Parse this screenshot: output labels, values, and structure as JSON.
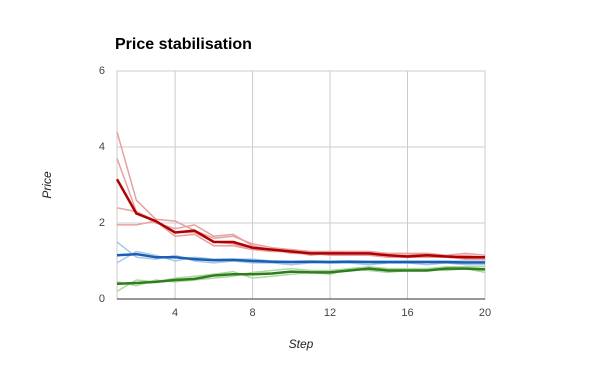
{
  "chart_data": {
    "type": "line",
    "title": "Price stabilisation",
    "x_label": "Step",
    "y_label": "Price",
    "x": [
      1,
      2,
      3,
      4,
      5,
      6,
      7,
      8,
      9,
      10,
      11,
      12,
      13,
      14,
      15,
      16,
      17,
      18,
      19,
      20
    ],
    "xlim": [
      1,
      20
    ],
    "xticks": [
      4,
      8,
      12,
      16,
      20
    ],
    "ylim": [
      0,
      6
    ],
    "yticks": [
      0,
      2,
      4,
      6
    ],
    "grid": true,
    "series": [
      {
        "color": "#e8a0a0",
        "width": 1.5,
        "values": [
          4.4,
          2.6,
          2.1,
          2.05,
          1.8,
          1.6,
          1.65,
          1.45,
          1.35,
          1.3,
          1.25,
          1.25,
          1.25,
          1.25,
          1.2,
          1.2,
          1.2,
          1.15,
          1.2,
          1.15
        ]
      },
      {
        "color": "#e8a0a0",
        "width": 1.5,
        "values": [
          3.7,
          2.3,
          2.0,
          1.85,
          1.95,
          1.65,
          1.7,
          1.4,
          1.3,
          1.3,
          1.2,
          1.25,
          1.2,
          1.2,
          1.15,
          1.15,
          1.2,
          1.1,
          1.15,
          1.1
        ]
      },
      {
        "color": "#e8a0a0",
        "width": 1.5,
        "values": [
          2.4,
          2.3,
          2.05,
          1.65,
          1.7,
          1.4,
          1.4,
          1.3,
          1.3,
          1.2,
          1.2,
          1.15,
          1.15,
          1.15,
          1.1,
          1.1,
          1.1,
          1.1,
          1.05,
          1.05
        ]
      },
      {
        "color": "#e8a0a0",
        "width": 1.5,
        "values": [
          1.95,
          1.95,
          2.05,
          1.75,
          1.75,
          1.5,
          1.45,
          1.3,
          1.25,
          1.25,
          1.15,
          1.2,
          1.2,
          1.15,
          1.15,
          1.1,
          1.15,
          1.1,
          1.1,
          1.05
        ]
      },
      {
        "color": "#a8c8e8",
        "width": 1.5,
        "values": [
          1.5,
          1.1,
          1.05,
          1.15,
          1.0,
          0.95,
          1.0,
          0.95,
          0.95,
          0.9,
          0.95,
          0.95,
          0.95,
          0.9,
          0.95,
          0.95,
          0.9,
          0.95,
          0.9,
          0.9
        ]
      },
      {
        "color": "#a8c8e8",
        "width": 1.5,
        "values": [
          0.95,
          1.25,
          1.15,
          1.0,
          1.1,
          1.05,
          1.05,
          1.05,
          1.0,
          1.0,
          1.0,
          1.0,
          1.0,
          1.0,
          1.0,
          1.0,
          1.0,
          1.0,
          1.0,
          1.0
        ]
      },
      {
        "color": "#b0d8a0",
        "width": 1.5,
        "values": [
          0.2,
          0.5,
          0.45,
          0.55,
          0.6,
          0.65,
          0.72,
          0.55,
          0.6,
          0.65,
          0.7,
          0.65,
          0.8,
          0.75,
          0.7,
          0.75,
          0.8,
          0.75,
          0.8,
          0.7
        ]
      },
      {
        "color": "#b0d8a0",
        "width": 1.5,
        "values": [
          0.45,
          0.35,
          0.5,
          0.45,
          0.5,
          0.55,
          0.6,
          0.7,
          0.75,
          0.8,
          0.75,
          0.75,
          0.8,
          0.85,
          0.8,
          0.8,
          0.8,
          0.85,
          0.85,
          0.85
        ]
      },
      {
        "color": "#b00000",
        "width": 2.5,
        "values": [
          3.15,
          2.25,
          2.05,
          1.75,
          1.8,
          1.5,
          1.5,
          1.35,
          1.3,
          1.25,
          1.2,
          1.2,
          1.2,
          1.2,
          1.15,
          1.12,
          1.15,
          1.12,
          1.1,
          1.1
        ]
      },
      {
        "color": "#1a5fb4",
        "width": 2.5,
        "values": [
          1.15,
          1.18,
          1.1,
          1.1,
          1.05,
          1.02,
          1.03,
          1.0,
          0.98,
          0.97,
          0.98,
          0.97,
          0.98,
          0.97,
          0.97,
          0.97,
          0.97,
          0.97,
          0.96,
          0.96
        ]
      },
      {
        "color": "#2e7d1e",
        "width": 2.5,
        "values": [
          0.4,
          0.42,
          0.45,
          0.5,
          0.53,
          0.62,
          0.65,
          0.65,
          0.67,
          0.72,
          0.7,
          0.7,
          0.75,
          0.8,
          0.75,
          0.75,
          0.75,
          0.8,
          0.8,
          0.78
        ]
      }
    ]
  }
}
